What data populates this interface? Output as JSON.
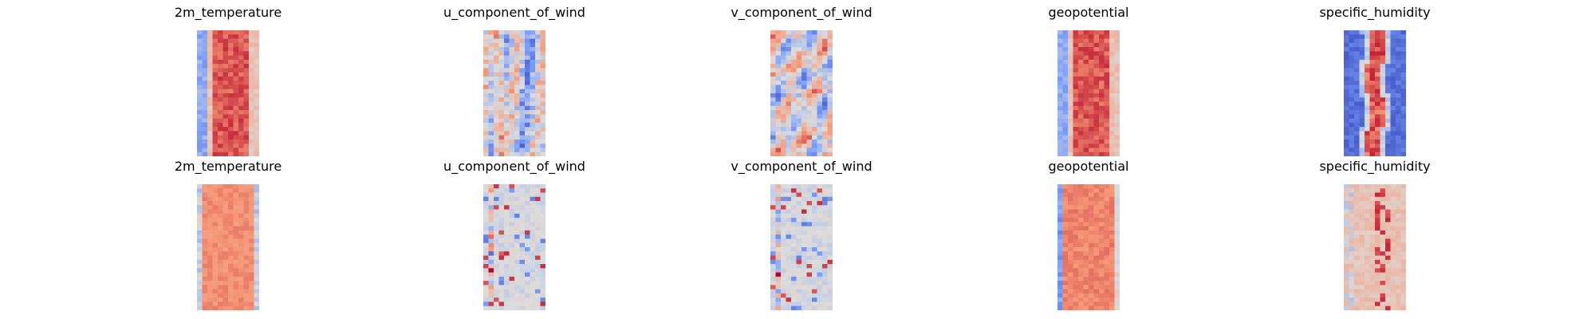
{
  "colormap": "coolwarm",
  "colors": {
    "cold": "#3b4cc0",
    "neutral": "#dddddd",
    "warm": "#b40426",
    "background": "#ffffff"
  },
  "chart_data": [
    {
      "type": "heatmap",
      "title": "2m_temperature",
      "row": 1,
      "pattern": "band_warm_center"
    },
    {
      "type": "heatmap",
      "title": "u_component_of_wind",
      "row": 1,
      "pattern": "streaky_mixed"
    },
    {
      "type": "heatmap",
      "title": "v_component_of_wind",
      "row": 1,
      "pattern": "blotchy_mixed"
    },
    {
      "type": "heatmap",
      "title": "geopotential",
      "row": 1,
      "pattern": "band_warm_center"
    },
    {
      "type": "heatmap",
      "title": "specific_humidity",
      "row": 1,
      "pattern": "narrow_warm_center_cold_edges"
    },
    {
      "type": "heatmap",
      "title": "2m_temperature",
      "row": 2,
      "pattern": "uniform_warm_cool_edges"
    },
    {
      "type": "heatmap",
      "title": "u_component_of_wind",
      "row": 2,
      "pattern": "mostly_neutral_sparse"
    },
    {
      "type": "heatmap",
      "title": "v_component_of_wind",
      "row": 2,
      "pattern": "mostly_neutral_sparse"
    },
    {
      "type": "heatmap",
      "title": "geopotential",
      "row": 2,
      "pattern": "uniform_warm_blue_left_edge"
    },
    {
      "type": "heatmap",
      "title": "specific_humidity",
      "row": 2,
      "pattern": "light_warm_speckled"
    }
  ]
}
